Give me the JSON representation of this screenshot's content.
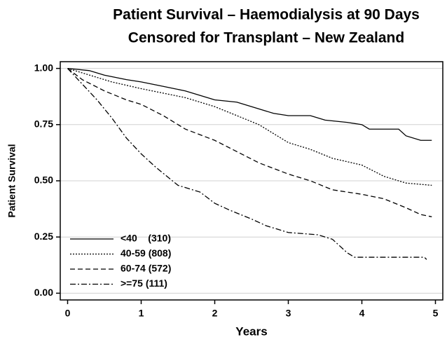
{
  "chart_data": {
    "type": "line",
    "title": [
      "Patient Survival – Haemodialysis at 90 Days",
      "Censored for Transplant – New Zealand"
    ],
    "x_label": "Years",
    "y_label": "Patient Survival",
    "xlim": [
      -0.1,
      5.1
    ],
    "xticks": [
      0,
      1,
      2,
      3,
      4,
      5
    ],
    "ylim": [
      -0.03,
      1.03
    ],
    "yticks": [
      {
        "value": 0,
        "label": "0.00"
      },
      {
        "value": 0.25,
        "label": "0.25"
      },
      {
        "value": 0.5,
        "label": "0.50"
      },
      {
        "value": 0.75,
        "label": "0.75"
      },
      {
        "value": 1,
        "label": "1.00"
      }
    ],
    "grid": true,
    "legend": "lower-left",
    "series": [
      {
        "name": "<40    (310)",
        "color": "#000000",
        "dash": "none",
        "x": [
          0,
          0.3,
          0.5,
          0.8,
          1,
          1.3,
          1.6,
          1.8,
          2,
          2.3,
          2.6,
          2.8,
          3,
          3.3,
          3.5,
          3.8,
          4,
          4.1,
          4.5,
          4.6,
          4.8,
          4.95
        ],
        "values": [
          1,
          0.99,
          0.97,
          0.95,
          0.94,
          0.92,
          0.9,
          0.88,
          0.86,
          0.85,
          0.82,
          0.8,
          0.79,
          0.79,
          0.77,
          0.76,
          0.75,
          0.73,
          0.73,
          0.7,
          0.68,
          0.68
        ]
      },
      {
        "name": "40-59 (808)",
        "color": "#000000",
        "dash": "2,2",
        "x": [
          0,
          0.3,
          0.6,
          1,
          1.3,
          1.6,
          2,
          2.3,
          2.6,
          2.8,
          3,
          3.3,
          3.6,
          4,
          4.3,
          4.6,
          4.95
        ],
        "values": [
          1,
          0.97,
          0.94,
          0.91,
          0.89,
          0.87,
          0.83,
          0.79,
          0.75,
          0.71,
          0.67,
          0.64,
          0.6,
          0.57,
          0.52,
          0.49,
          0.48
        ]
      },
      {
        "name": "60-74 (572)",
        "color": "#000000",
        "dash": "7,4",
        "x": [
          0,
          0.2,
          0.5,
          0.8,
          1,
          1.3,
          1.6,
          2,
          2.3,
          2.6,
          3,
          3.3,
          3.6,
          4,
          4.3,
          4.6,
          4.8,
          4.95
        ],
        "values": [
          1,
          0.95,
          0.9,
          0.86,
          0.84,
          0.79,
          0.73,
          0.68,
          0.63,
          0.58,
          0.53,
          0.5,
          0.46,
          0.44,
          0.42,
          0.38,
          0.35,
          0.34
        ]
      },
      {
        "name": ">=75 (111)",
        "color": "#000000",
        "dash": "8,3,2,3",
        "x": [
          0,
          0.2,
          0.4,
          0.6,
          0.8,
          1,
          1.2,
          1.5,
          1.8,
          2,
          2.2,
          2.5,
          2.7,
          3,
          3.4,
          3.6,
          3.8,
          3.9,
          4.3,
          4.85,
          4.88
        ],
        "values": [
          1,
          0.93,
          0.86,
          0.78,
          0.69,
          0.62,
          0.56,
          0.48,
          0.45,
          0.4,
          0.37,
          0.33,
          0.3,
          0.27,
          0.26,
          0.24,
          0.18,
          0.16,
          0.16,
          0.16,
          0.15
        ]
      }
    ]
  }
}
